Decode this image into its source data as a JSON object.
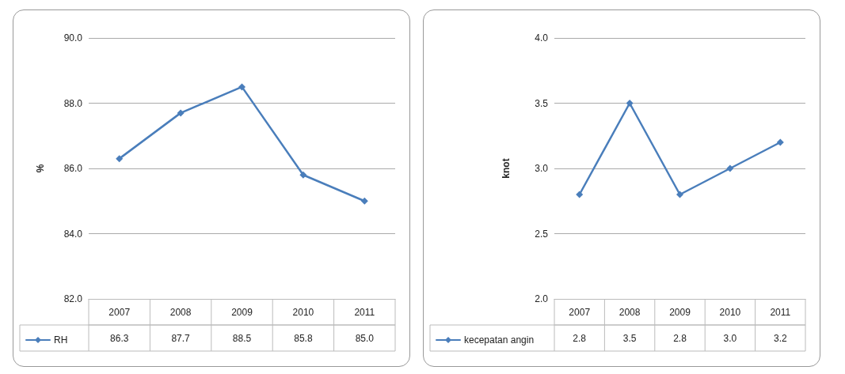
{
  "chart_data": [
    {
      "type": "line",
      "ylabel": "%",
      "categories": [
        "2007",
        "2008",
        "2009",
        "2010",
        "2011"
      ],
      "series": [
        {
          "name": "RH",
          "color": "#4a7ebb",
          "values": [
            86.3,
            87.7,
            88.5,
            85.8,
            85.0
          ],
          "value_labels": [
            "86.3",
            "87.7",
            "88.5",
            "85.8",
            "85.0"
          ]
        }
      ],
      "ylim": [
        82,
        90
      ],
      "yticks": [
        {
          "value": 82,
          "label": "82.0"
        },
        {
          "value": 84,
          "label": "84.0"
        },
        {
          "value": 86,
          "label": "86.0"
        },
        {
          "value": 88,
          "label": "88.0"
        },
        {
          "value": 90,
          "label": "90.0"
        }
      ],
      "grid": "y",
      "legend": "bottom left",
      "marker": "diamond",
      "line_style": "solid"
    },
    {
      "type": "line",
      "ylabel": "knot",
      "categories": [
        "2007",
        "2008",
        "2009",
        "2010",
        "2011"
      ],
      "series": [
        {
          "name": "kecepatan angin",
          "color": "#4a7ebb",
          "values": [
            2.8,
            3.5,
            2.8,
            3.0,
            3.2
          ],
          "value_labels": [
            "2.8",
            "3.5",
            "2.8",
            "3.0",
            "3.2"
          ]
        }
      ],
      "ylim": [
        2,
        4
      ],
      "yticks": [
        {
          "value": 2,
          "label": "2.0"
        },
        {
          "value": 2.5,
          "label": "2.5"
        },
        {
          "value": 3,
          "label": "3.0"
        },
        {
          "value": 3.5,
          "label": "3.5"
        },
        {
          "value": 4,
          "label": "4.0"
        }
      ],
      "grid": "y",
      "legend": "bottom left",
      "marker": "diamond",
      "line_style": "solid"
    }
  ]
}
